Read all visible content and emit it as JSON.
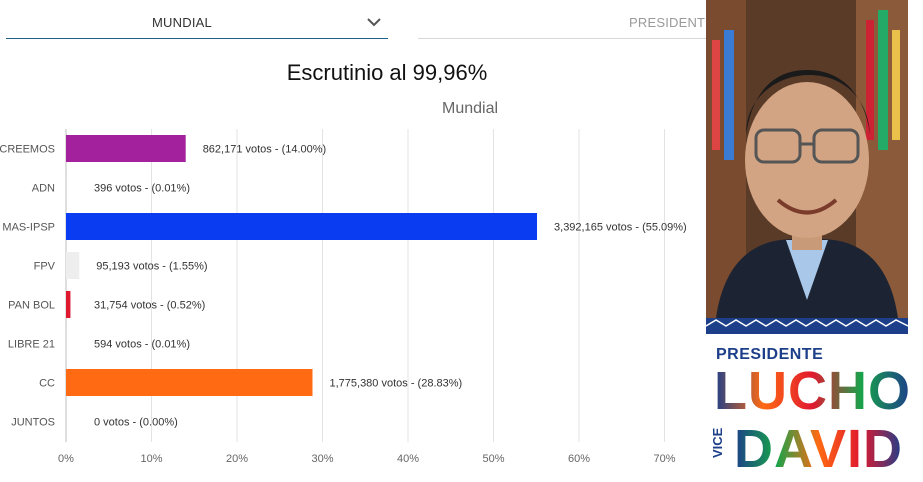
{
  "filters": {
    "scope": "MUNDIAL",
    "office": "PRESIDENTE"
  },
  "scrutiny_label": "Escrutinio al 99,96%",
  "chart_data": {
    "type": "bar",
    "orientation": "horizontal",
    "title": "Mundial",
    "xlabel": "",
    "ylabel": "",
    "xlim": [
      0,
      0.75
    ],
    "grid": true,
    "categories": [
      "CREEMOS",
      "ADN",
      "MAS-IPSP",
      "FPV",
      "PAN BOL",
      "LIBRE 21",
      "CC",
      "JUNTOS"
    ],
    "values": [
      0.14,
      0.0001,
      0.5509,
      0.0155,
      0.0052,
      0.0001,
      0.2883,
      0.0
    ],
    "data_labels": [
      "862,171 votos - (14.00%)",
      "396 votos - (0.01%)",
      "3,392,165 votos - (55.09%)",
      "95,193 votos - (1.55%)",
      "31,754 votos - (0.52%)",
      "594 votos - (0.01%)",
      "1,775,380 votos - (28.83%)",
      "0 votos - (0.00%)"
    ],
    "colors": [
      "#a4219e",
      "#d9d9d9",
      "#0a3cf2",
      "#eeeeee",
      "#e0192f",
      "#d9d9d9",
      "#ff6a13",
      "#d9d9d9"
    ],
    "x_ticks": [
      "0%",
      "10%",
      "20%",
      "30%",
      "40%",
      "50%",
      "60%",
      "70%"
    ],
    "x_tick_values": [
      0,
      0.1,
      0.2,
      0.3,
      0.4,
      0.5,
      0.6,
      0.7
    ]
  },
  "promo": {
    "role_top": "PRESIDENTE",
    "name_top": "LUCHO",
    "role_bottom": "VICE",
    "name_bottom": "DAVID"
  },
  "colors": {
    "accent": "#1f5f8b",
    "poster_blue": "#1d3f8a"
  },
  "icons": {
    "dropdown": "chevron-down-icon"
  }
}
